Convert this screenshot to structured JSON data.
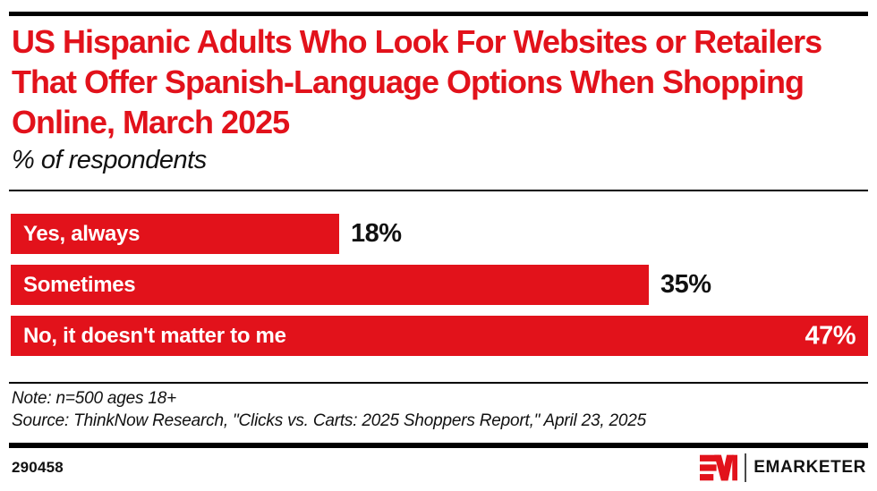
{
  "colors": {
    "accent": "#e2121b",
    "text": "#111111",
    "rule": "#000000"
  },
  "chart_data": {
    "type": "bar",
    "orientation": "horizontal",
    "title": "US Hispanic Adults Who Look For Websites or Retailers That Offer Spanish-Language Options When Shopping Online, March 2025",
    "subtitle": "% of respondents",
    "categories": [
      "Yes, always",
      "Sometimes",
      "No, it doesn't matter to me"
    ],
    "values": [
      18,
      35,
      47
    ],
    "value_labels": [
      "18%",
      "35%",
      "47%"
    ],
    "value_label_inside": [
      false,
      false,
      true
    ],
    "xlim": [
      0,
      47
    ],
    "grid": false,
    "legend": "none",
    "bar_color": "#e2121b"
  },
  "footnote": {
    "note": "Note: n=500 ages 18+",
    "source": "Source: ThinkNow Research, \"Clicks vs. Carts: 2025 Shoppers Report,\" April 23, 2025"
  },
  "footer": {
    "chart_id": "290458",
    "brand_name": "EMARKETER"
  }
}
